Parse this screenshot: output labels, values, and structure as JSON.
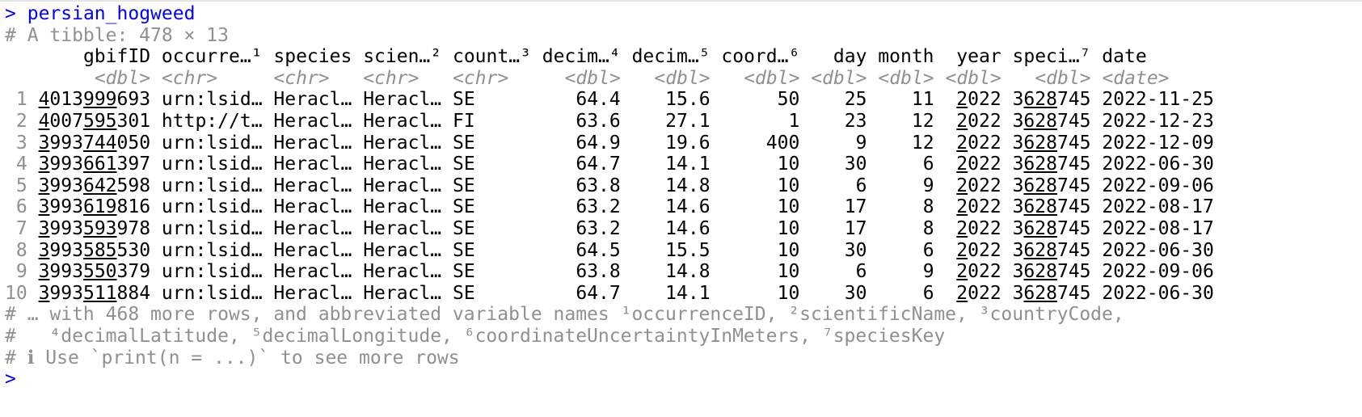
{
  "console": {
    "prompt": ">",
    "command": "persian_hogweed",
    "summary": "# A tibble: 478 × 13",
    "footer": [
      "# … with 468 more rows, and abbreviated variable names ¹occurrenceID, ²scientificName, ³countryCode,",
      "#   ⁴decimalLatitude, ⁵decimalLongitude, ⁶coordinateUncertaintyInMeters, ⁷speciesKey",
      "# ℹ Use `print(n = ...)` to see more rows"
    ],
    "trailing_prompt": ">"
  },
  "table": {
    "columns": [
      {
        "name": "gbifID",
        "type": "<dbl>"
      },
      {
        "name": "occurre…¹",
        "type": "<chr>"
      },
      {
        "name": "species",
        "type": "<chr>"
      },
      {
        "name": "scien…²",
        "type": "<chr>"
      },
      {
        "name": "count…³",
        "type": "<chr>"
      },
      {
        "name": "decim…⁴",
        "type": "<dbl>"
      },
      {
        "name": "decim…⁵",
        "type": "<dbl>"
      },
      {
        "name": "coord…⁶",
        "type": "<dbl>"
      },
      {
        "name": "day",
        "type": "<dbl>"
      },
      {
        "name": "month",
        "type": "<dbl>"
      },
      {
        "name": "year",
        "type": "<dbl>"
      },
      {
        "name": "speci…⁷",
        "type": "<dbl>"
      },
      {
        "name": "date",
        "type": "<date>"
      }
    ],
    "rows": [
      {
        "n": "1",
        "gbifID": "4013999693",
        "occ": "urn:lsid…",
        "species": "Heracl…",
        "sci": "Heracl…",
        "country": "SE",
        "lat": "64.4",
        "lon": "15.6",
        "coord": "50",
        "day": "25",
        "month": "11",
        "year": "2022",
        "key": "3628745",
        "date": "2022-11-25"
      },
      {
        "n": "2",
        "gbifID": "4007595301",
        "occ": "http://t…",
        "species": "Heracl…",
        "sci": "Heracl…",
        "country": "FI",
        "lat": "63.6",
        "lon": "27.1",
        "coord": "1",
        "day": "23",
        "month": "12",
        "year": "2022",
        "key": "3628745",
        "date": "2022-12-23"
      },
      {
        "n": "3",
        "gbifID": "3993744050",
        "occ": "urn:lsid…",
        "species": "Heracl…",
        "sci": "Heracl…",
        "country": "SE",
        "lat": "64.9",
        "lon": "19.6",
        "coord": "400",
        "day": "9",
        "month": "12",
        "year": "2022",
        "key": "3628745",
        "date": "2022-12-09"
      },
      {
        "n": "4",
        "gbifID": "3993661397",
        "occ": "urn:lsid…",
        "species": "Heracl…",
        "sci": "Heracl…",
        "country": "SE",
        "lat": "64.7",
        "lon": "14.1",
        "coord": "10",
        "day": "30",
        "month": "6",
        "year": "2022",
        "key": "3628745",
        "date": "2022-06-30"
      },
      {
        "n": "5",
        "gbifID": "3993642598",
        "occ": "urn:lsid…",
        "species": "Heracl…",
        "sci": "Heracl…",
        "country": "SE",
        "lat": "63.8",
        "lon": "14.8",
        "coord": "10",
        "day": "6",
        "month": "9",
        "year": "2022",
        "key": "3628745",
        "date": "2022-09-06"
      },
      {
        "n": "6",
        "gbifID": "3993619816",
        "occ": "urn:lsid…",
        "species": "Heracl…",
        "sci": "Heracl…",
        "country": "SE",
        "lat": "63.2",
        "lon": "14.6",
        "coord": "10",
        "day": "17",
        "month": "8",
        "year": "2022",
        "key": "3628745",
        "date": "2022-08-17"
      },
      {
        "n": "7",
        "gbifID": "3993593978",
        "occ": "urn:lsid…",
        "species": "Heracl…",
        "sci": "Heracl…",
        "country": "SE",
        "lat": "63.2",
        "lon": "14.6",
        "coord": "10",
        "day": "17",
        "month": "8",
        "year": "2022",
        "key": "3628745",
        "date": "2022-08-17"
      },
      {
        "n": "8",
        "gbifID": "3993585530",
        "occ": "urn:lsid…",
        "species": "Heracl…",
        "sci": "Heracl…",
        "country": "SE",
        "lat": "64.5",
        "lon": "15.5",
        "coord": "10",
        "day": "30",
        "month": "6",
        "year": "2022",
        "key": "3628745",
        "date": "2022-06-30"
      },
      {
        "n": "9",
        "gbifID": "3993550379",
        "occ": "urn:lsid…",
        "species": "Heracl…",
        "sci": "Heracl…",
        "country": "SE",
        "lat": "63.8",
        "lon": "14.8",
        "coord": "10",
        "day": "6",
        "month": "9",
        "year": "2022",
        "key": "3628745",
        "date": "2022-09-06"
      },
      {
        "n": "10",
        "gbifID": "3993511884",
        "occ": "urn:lsid…",
        "species": "Heracl…",
        "sci": "Heracl…",
        "country": "SE",
        "lat": "64.7",
        "lon": "14.1",
        "coord": "10",
        "day": "30",
        "month": "6",
        "year": "2022",
        "key": "3628745",
        "date": "2022-06-30"
      }
    ]
  }
}
